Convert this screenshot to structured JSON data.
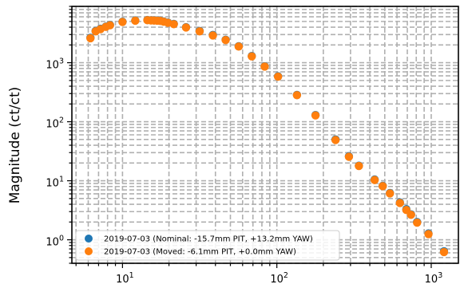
{
  "chart_data": {
    "type": "scatter",
    "title": "",
    "xlabel": "",
    "ylabel": "Magnitude (ct/ct)",
    "xscale": "log",
    "yscale": "log",
    "xlim": [
      4.7,
      1500
    ],
    "ylim": [
      0.4,
      9000
    ],
    "grid": true,
    "legend_position": "lower-left",
    "x_ticks": [
      {
        "value": 10,
        "base": "10",
        "exp": "1"
      },
      {
        "value": 100,
        "base": "10",
        "exp": "2"
      },
      {
        "value": 1000,
        "base": "10",
        "exp": "3"
      }
    ],
    "y_ticks": [
      {
        "value": 1,
        "base": "10",
        "exp": "0"
      },
      {
        "value": 10,
        "base": "10",
        "exp": "1"
      },
      {
        "value": 100,
        "base": "10",
        "exp": "2"
      },
      {
        "value": 1000,
        "base": "10",
        "exp": "3"
      }
    ],
    "series": [
      {
        "name": "2019-07-03 (Nominal: -15.7mm PIT, +13.2mm YAW)",
        "color": "#1f77b4",
        "x": [
          6.2,
          6.7,
          7.2,
          7.8,
          8.3,
          10.0,
          12.1,
          14.5,
          15.3,
          16.0,
          16.8,
          17.6,
          18.5,
          19.7,
          21.5,
          25.8,
          31.6,
          38.5,
          46.6,
          56.6,
          68.8,
          83.4,
          101.8,
          135,
          178,
          240,
          293,
          340,
          430,
          485,
          540,
          627,
          690,
          740,
          810,
          960,
          1210
        ],
        "y": [
          2650,
          3450,
          3750,
          4100,
          4350,
          4950,
          5200,
          5300,
          5250,
          5220,
          5200,
          5150,
          5000,
          4800,
          4550,
          4000,
          3450,
          2950,
          2450,
          1900,
          1300,
          870,
          590,
          285,
          130,
          50,
          26,
          18,
          10.5,
          8.2,
          6.2,
          4.3,
          3.3,
          2.7,
          2.0,
          1.28,
          0.64
        ]
      },
      {
        "name": "2019-07-03 (Moved: -6.1mm PIT, +0.0mm YAW)",
        "color": "#ff7f0e",
        "x": [
          6.2,
          6.7,
          7.2,
          7.8,
          8.3,
          10.0,
          12.1,
          14.5,
          15.3,
          16.0,
          16.8,
          17.6,
          18.5,
          19.7,
          21.5,
          25.8,
          31.6,
          38.5,
          46.6,
          56.6,
          68.8,
          83.4,
          101.8,
          135,
          178,
          240,
          293,
          340,
          430,
          485,
          540,
          627,
          690,
          740,
          810,
          960,
          1210
        ],
        "y": [
          2600,
          3400,
          3700,
          4050,
          4300,
          4900,
          5150,
          5250,
          5200,
          5180,
          5150,
          5100,
          4950,
          4750,
          4500,
          3950,
          3400,
          2900,
          2420,
          1880,
          1280,
          860,
          580,
          282,
          128,
          49,
          25.5,
          17.8,
          10.3,
          8.1,
          6.1,
          4.2,
          3.2,
          2.65,
          1.95,
          1.25,
          0.62
        ]
      }
    ]
  }
}
